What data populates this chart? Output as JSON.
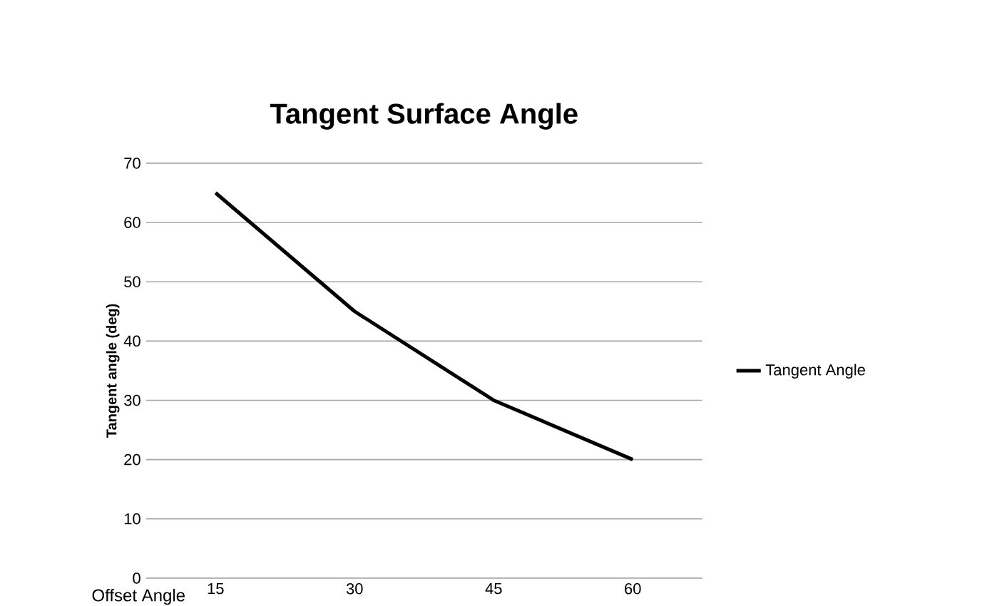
{
  "chart_data": {
    "type": "line",
    "title": "Tangent Surface Angle",
    "xlabel": "Offset Angle",
    "ylabel": "Tangent angle (deg)",
    "categories": [
      "15",
      "30",
      "45",
      "60"
    ],
    "series": [
      {
        "name": "Tangent Angle",
        "color": "#000000",
        "values": [
          65,
          45,
          30,
          20
        ]
      }
    ],
    "ylim": [
      0,
      70
    ],
    "yticks": [
      0,
      10,
      20,
      30,
      40,
      50,
      60,
      70
    ],
    "grid": "y",
    "legend": "right",
    "marker": "none",
    "line_style": "solid"
  }
}
